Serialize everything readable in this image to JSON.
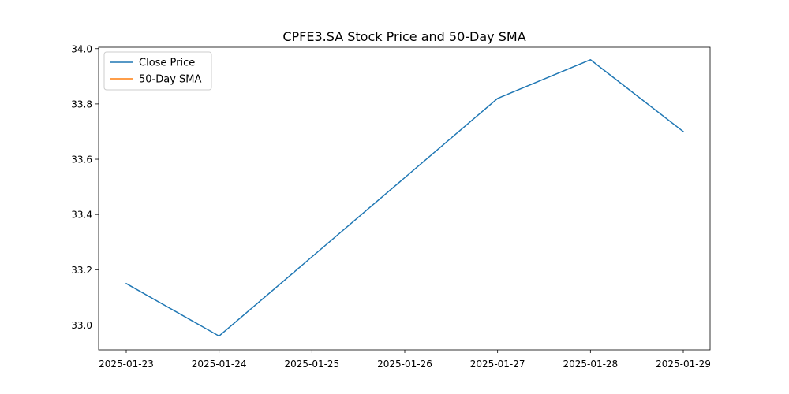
{
  "chart_data": {
    "type": "line",
    "title": "CPFE3.SA Stock Price and 50-Day SMA",
    "xlabel": "",
    "ylabel": "",
    "x": [
      "2025-01-23",
      "2025-01-24",
      "2025-01-25",
      "2025-01-26",
      "2025-01-27",
      "2025-01-28",
      "2025-01-29"
    ],
    "x_ticks": [
      "2025-01-23",
      "2025-01-24",
      "2025-01-25",
      "2025-01-26",
      "2025-01-27",
      "2025-01-28",
      "2025-01-29"
    ],
    "y_ticks": [
      "33.0",
      "33.2",
      "33.4",
      "33.6",
      "33.8",
      "34.0"
    ],
    "ylim": [
      32.91,
      34.005
    ],
    "grid": false,
    "legend_position": "upper left",
    "series": [
      {
        "name": "Close Price",
        "color": "#1f77b4",
        "points": [
          {
            "x": "2025-01-23",
            "y": 33.15
          },
          {
            "x": "2025-01-24",
            "y": 32.96
          },
          {
            "x": "2025-01-27",
            "y": 33.82
          },
          {
            "x": "2025-01-28",
            "y": 33.96
          },
          {
            "x": "2025-01-29",
            "y": 33.7
          }
        ]
      },
      {
        "name": "50-Day SMA",
        "color": "#ff7f0e",
        "points": []
      }
    ]
  }
}
